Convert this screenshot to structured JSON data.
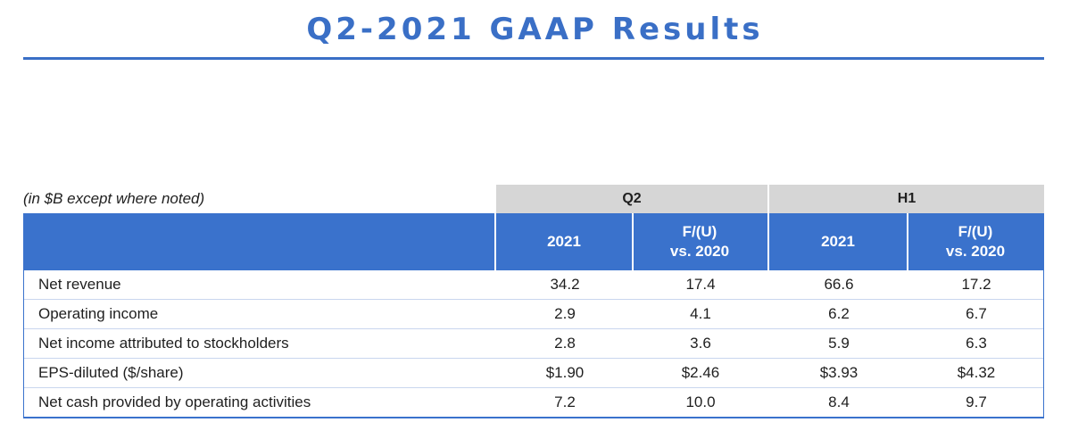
{
  "title": "Q2-2021 GAAP Results",
  "units_note": "(in $B except where noted)",
  "groups": {
    "q2": "Q2",
    "h1": "H1"
  },
  "columns": [
    {
      "line1": "2021",
      "line2": ""
    },
    {
      "line1": "F/(U)",
      "line2": "vs. 2020"
    },
    {
      "line1": "2021",
      "line2": ""
    },
    {
      "line1": "F/(U)",
      "line2": "vs. 2020"
    }
  ],
  "rows": [
    {
      "label": "Net revenue",
      "values": [
        "34.2",
        "17.4",
        "66.6",
        "17.2"
      ]
    },
    {
      "label": "Operating income",
      "values": [
        "2.9",
        "4.1",
        "6.2",
        "6.7"
      ]
    },
    {
      "label": "Net income attributed to stockholders",
      "values": [
        "2.8",
        "3.6",
        "5.9",
        "6.3"
      ]
    },
    {
      "label": "EPS-diluted ($/share)",
      "values": [
        "$1.90",
        "$2.46",
        "$3.93",
        "$4.32"
      ]
    },
    {
      "label": "Net cash provided by operating activities",
      "values": [
        "7.2",
        "10.0",
        "8.4",
        "9.7"
      ]
    }
  ],
  "colors": {
    "accent": "#3a72cc",
    "group_header_bg": "#d6d6d6",
    "header_text": "#ffffff"
  }
}
